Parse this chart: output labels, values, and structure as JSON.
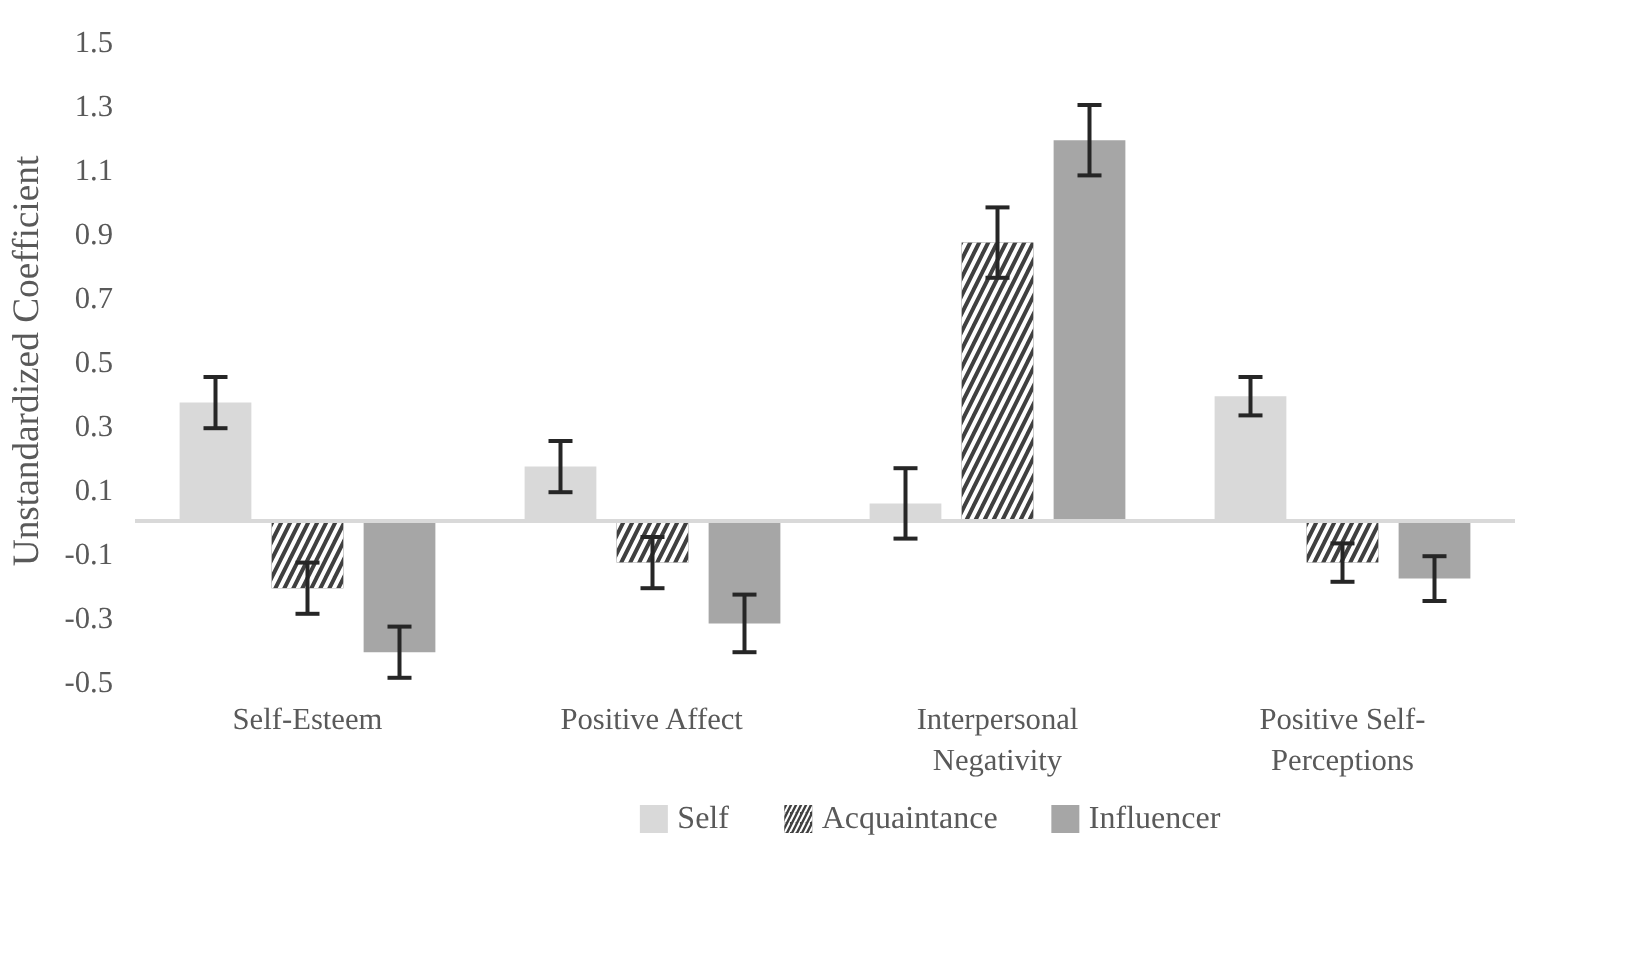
{
  "chart_data": {
    "type": "bar",
    "ylabel": "Unstandardized Coefficient",
    "categories": [
      "Self-Esteem",
      "Positive Affect",
      "Interpersonal\nNegativity",
      "Positive Self-\nPerceptions"
    ],
    "series": [
      {
        "name": "Self",
        "color": "#d9d9d9",
        "values": [
          0.37,
          0.17,
          0.055,
          0.39
        ],
        "errors": [
          0.08,
          0.08,
          0.11,
          0.06
        ]
      },
      {
        "name": "Acquaintance",
        "color": "#404040",
        "values": [
          -0.21,
          -0.13,
          0.87,
          -0.13
        ],
        "errors": [
          0.08,
          0.08,
          0.11,
          0.06
        ]
      },
      {
        "name": "Influencer",
        "color": "#a6a6a6",
        "values": [
          -0.41,
          -0.32,
          1.19,
          -0.18
        ],
        "errors": [
          0.08,
          0.09,
          0.11,
          0.07
        ]
      }
    ],
    "ylim": [
      -0.5,
      1.5
    ],
    "yticks": [
      -0.5,
      -0.3,
      -0.1,
      0.1,
      0.3,
      0.5,
      0.7,
      0.9,
      1.1,
      1.3,
      1.5
    ],
    "grid": false,
    "legend": "bottom"
  }
}
